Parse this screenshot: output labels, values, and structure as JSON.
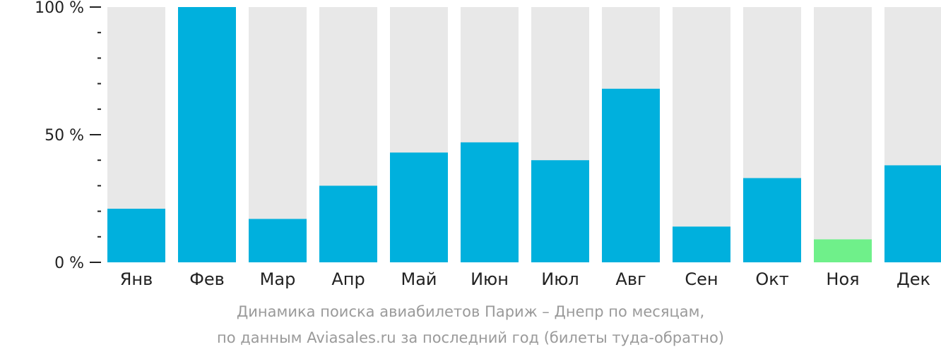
{
  "chart_data": {
    "type": "bar",
    "categories": [
      "Янв",
      "Фев",
      "Мар",
      "Апр",
      "Май",
      "Июн",
      "Июл",
      "Авг",
      "Сен",
      "Окт",
      "Ноя",
      "Дек"
    ],
    "values": [
      21,
      100,
      17,
      30,
      43,
      47,
      40,
      68,
      14,
      33,
      9,
      38
    ],
    "ylim": [
      0,
      100
    ],
    "y_ticks": [
      "0 %",
      "50 %",
      "100 %"
    ],
    "colors": {
      "bar": "#00b0dd",
      "highlight_bar": "#6ff08a",
      "background_bar": "#e8e8e8",
      "axis": "#222222"
    },
    "highlight_index": 10,
    "caption_line1": "Динамика поиска авиабилетов Париж – Днепр по месяцам,",
    "caption_line2": "по данным Aviasales.ru за последний год (билеты туда-обратно)",
    "grid": false,
    "legend": "none"
  }
}
